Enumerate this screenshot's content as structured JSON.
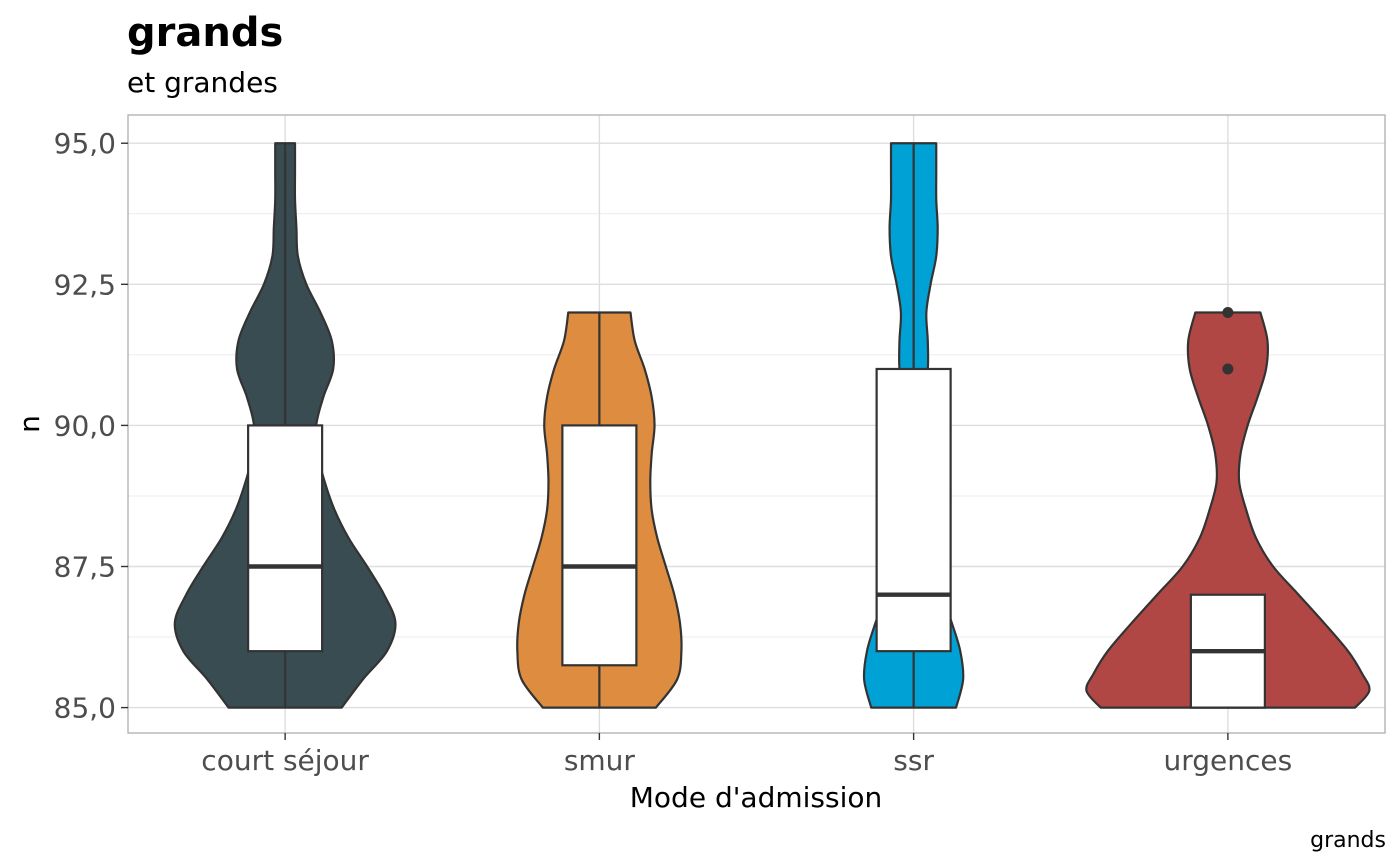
{
  "chart_data": {
    "type": "violin",
    "title": "grands",
    "subtitle": "et grandes",
    "caption": "grands",
    "xlabel": "Mode d'admission",
    "ylabel": "n",
    "ylim": [
      84.55,
      95.5
    ],
    "y_ticks": [
      85.0,
      87.5,
      90.0,
      92.5,
      95.0
    ],
    "y_tick_labels": [
      "85,0",
      "87,5",
      "90,0",
      "92,5",
      "95,0"
    ],
    "grid": true,
    "legend": "none",
    "categories": [
      "court séjour",
      "smur",
      "ssr",
      "urgences"
    ],
    "colors": [
      "#384c52",
      "#de8c40",
      "#00a2d6",
      "#b04745"
    ],
    "groups": [
      {
        "name": "court séjour",
        "color": "#384c52",
        "range": [
          85.0,
          95.0
        ],
        "density": [
          [
            85.0,
            0.4
          ],
          [
            85.5,
            0.55
          ],
          [
            86.0,
            0.72
          ],
          [
            86.5,
            0.78
          ],
          [
            87.0,
            0.7
          ],
          [
            87.5,
            0.58
          ],
          [
            88.0,
            0.45
          ],
          [
            88.5,
            0.35
          ],
          [
            89.0,
            0.28
          ],
          [
            89.5,
            0.23
          ],
          [
            90.0,
            0.22
          ],
          [
            90.5,
            0.27
          ],
          [
            91.0,
            0.34
          ],
          [
            91.5,
            0.33
          ],
          [
            92.0,
            0.25
          ],
          [
            92.5,
            0.15
          ],
          [
            93.0,
            0.09
          ],
          [
            93.5,
            0.08
          ],
          [
            94.0,
            0.07
          ],
          [
            94.5,
            0.07
          ],
          [
            95.0,
            0.07
          ]
        ],
        "box": {
          "q1": 86.0,
          "median": 87.5,
          "q3": 90.0,
          "whisker_low": 85.0,
          "whisker_high": 95.0
        },
        "outliers": []
      },
      {
        "name": "smur",
        "color": "#de8c40",
        "range": [
          85.0,
          92.0
        ],
        "density": [
          [
            85.0,
            0.4
          ],
          [
            85.5,
            0.55
          ],
          [
            86.0,
            0.58
          ],
          [
            86.5,
            0.57
          ],
          [
            87.0,
            0.53
          ],
          [
            87.5,
            0.47
          ],
          [
            88.0,
            0.41
          ],
          [
            88.5,
            0.37
          ],
          [
            89.0,
            0.36
          ],
          [
            89.5,
            0.37
          ],
          [
            90.0,
            0.39
          ],
          [
            90.5,
            0.37
          ],
          [
            91.0,
            0.32
          ],
          [
            91.5,
            0.25
          ],
          [
            92.0,
            0.22
          ]
        ],
        "box": {
          "q1": 85.75,
          "median": 87.5,
          "q3": 90.0,
          "whisker_low": 85.0,
          "whisker_high": 92.0
        },
        "outliers": []
      },
      {
        "name": "ssr",
        "color": "#00a2d6",
        "range": [
          85.0,
          95.0
        ],
        "density": [
          [
            85.0,
            0.3
          ],
          [
            85.5,
            0.35
          ],
          [
            86.0,
            0.33
          ],
          [
            86.5,
            0.27
          ],
          [
            87.0,
            0.2
          ],
          [
            87.5,
            0.14
          ],
          [
            88.0,
            0.1
          ],
          [
            88.5,
            0.07
          ],
          [
            89.0,
            0.05
          ],
          [
            89.5,
            0.04
          ],
          [
            90.0,
            0.05
          ],
          [
            90.5,
            0.07
          ],
          [
            91.0,
            0.1
          ],
          [
            91.5,
            0.1
          ],
          [
            92.0,
            0.09
          ],
          [
            92.5,
            0.12
          ],
          [
            93.0,
            0.16
          ],
          [
            93.5,
            0.17
          ],
          [
            94.0,
            0.16
          ],
          [
            94.5,
            0.16
          ],
          [
            95.0,
            0.16
          ]
        ],
        "box": {
          "q1": 86.0,
          "median": 87.0,
          "q3": 91.0,
          "whisker_low": 85.0,
          "whisker_high": 95.0
        },
        "outliers": []
      },
      {
        "name": "urgences",
        "color": "#b04745",
        "range": [
          85.0,
          92.0
        ],
        "density": [
          [
            85.0,
            0.9
          ],
          [
            85.3,
            1.0
          ],
          [
            85.6,
            0.95
          ],
          [
            86.0,
            0.85
          ],
          [
            86.5,
            0.68
          ],
          [
            87.0,
            0.5
          ],
          [
            87.5,
            0.32
          ],
          [
            88.0,
            0.2
          ],
          [
            88.5,
            0.13
          ],
          [
            89.0,
            0.08
          ],
          [
            89.5,
            0.09
          ],
          [
            90.0,
            0.14
          ],
          [
            90.5,
            0.21
          ],
          [
            91.0,
            0.27
          ],
          [
            91.5,
            0.28
          ],
          [
            92.0,
            0.23
          ]
        ],
        "box": {
          "q1": 85.0,
          "median": 86.0,
          "q3": 87.0,
          "whisker_low": 85.0,
          "whisker_high": 87.0
        },
        "outliers": [
          91.0,
          92.0
        ]
      }
    ]
  }
}
